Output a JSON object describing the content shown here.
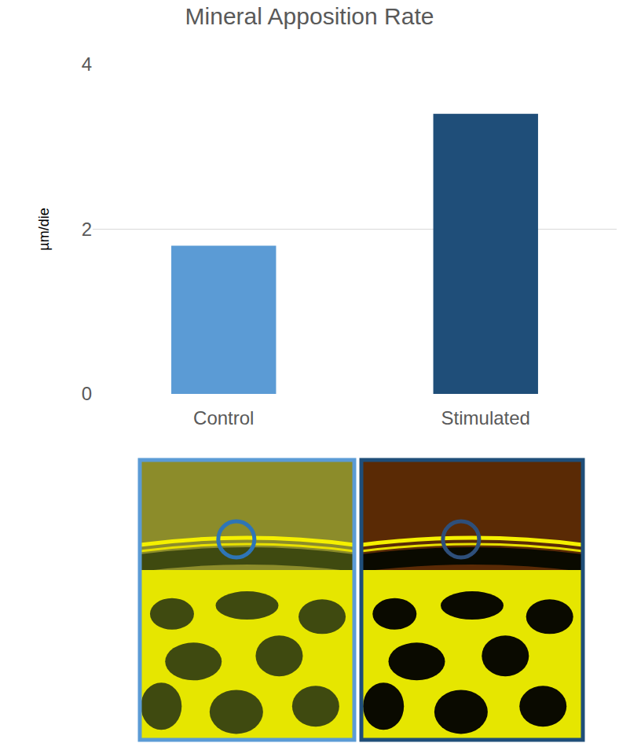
{
  "chart_data": {
    "type": "bar",
    "title": "Mineral Apposition Rate",
    "y_label": "µm/die",
    "categories": [
      "Control",
      "Stimulated"
    ],
    "values": [
      1.8,
      3.4
    ],
    "colors": [
      "#5b9bd5",
      "#1f4e79"
    ],
    "ylim": [
      0,
      4
    ],
    "yticks": [
      0,
      2,
      4
    ],
    "grid": true
  }
}
